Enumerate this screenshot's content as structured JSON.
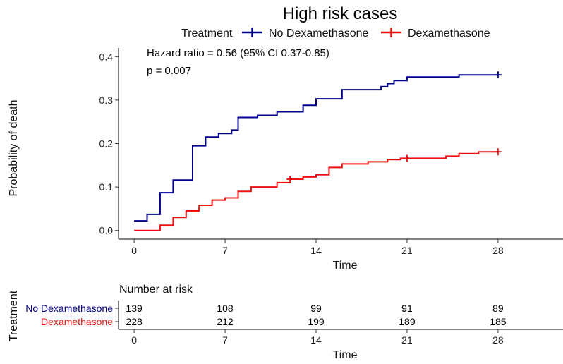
{
  "chart_data": {
    "type": "line",
    "title": "High risk cases",
    "xlabel": "Time",
    "ylabel": "Probability of death",
    "xlim": [
      -1.2,
      33
    ],
    "ylim": [
      -0.02,
      0.42
    ],
    "x_ticks": [
      0,
      7,
      14,
      21,
      28
    ],
    "y_ticks": [
      0.0,
      0.1,
      0.2,
      0.3,
      0.4
    ],
    "grid": false,
    "legend": {
      "title": "Treatment",
      "position": "top",
      "entries": [
        "No Dexamethasone",
        "Dexamethasone"
      ]
    },
    "annotations": [
      "Hazard ratio = 0.56 (95% CI 0.37-0.85)",
      "p = 0.007"
    ],
    "series": [
      {
        "name": "No Dexamethasone",
        "color": "#00008b",
        "step": true,
        "points": [
          [
            0,
            0.022
          ],
          [
            1,
            0.022
          ],
          [
            1,
            0.037
          ],
          [
            2,
            0.037
          ],
          [
            2,
            0.087
          ],
          [
            3,
            0.087
          ],
          [
            3,
            0.116
          ],
          [
            4.5,
            0.116
          ],
          [
            4.5,
            0.195
          ],
          [
            5.5,
            0.195
          ],
          [
            5.5,
            0.215
          ],
          [
            6.5,
            0.215
          ],
          [
            6.5,
            0.223
          ],
          [
            7.5,
            0.223
          ],
          [
            7.5,
            0.231
          ],
          [
            8,
            0.231
          ],
          [
            8,
            0.26
          ],
          [
            9.5,
            0.26
          ],
          [
            9.5,
            0.265
          ],
          [
            11,
            0.265
          ],
          [
            11,
            0.273
          ],
          [
            13,
            0.273
          ],
          [
            13,
            0.288
          ],
          [
            14,
            0.288
          ],
          [
            14,
            0.303
          ],
          [
            16,
            0.303
          ],
          [
            16,
            0.324
          ],
          [
            19,
            0.324
          ],
          [
            19,
            0.331
          ],
          [
            19.5,
            0.331
          ],
          [
            19.5,
            0.338
          ],
          [
            20,
            0.338
          ],
          [
            20,
            0.345
          ],
          [
            21,
            0.345
          ],
          [
            21,
            0.353
          ],
          [
            25,
            0.353
          ],
          [
            25,
            0.358
          ],
          [
            28,
            0.358
          ]
        ],
        "censor_marks": [
          [
            28,
            0.358
          ]
        ]
      },
      {
        "name": "Dexamethasone",
        "color": "#ee1111",
        "step": true,
        "points": [
          [
            0,
            0.0
          ],
          [
            2,
            0.0
          ],
          [
            2,
            0.012
          ],
          [
            3,
            0.012
          ],
          [
            3,
            0.03
          ],
          [
            4,
            0.03
          ],
          [
            4,
            0.045
          ],
          [
            5,
            0.045
          ],
          [
            5,
            0.058
          ],
          [
            6,
            0.058
          ],
          [
            6,
            0.07
          ],
          [
            7,
            0.07
          ],
          [
            7,
            0.075
          ],
          [
            8,
            0.075
          ],
          [
            8,
            0.09
          ],
          [
            9,
            0.09
          ],
          [
            9,
            0.1
          ],
          [
            11,
            0.1
          ],
          [
            11,
            0.11
          ],
          [
            12,
            0.11
          ],
          [
            12,
            0.118
          ],
          [
            13,
            0.118
          ],
          [
            13,
            0.123
          ],
          [
            14,
            0.123
          ],
          [
            14,
            0.128
          ],
          [
            15,
            0.128
          ],
          [
            15,
            0.145
          ],
          [
            16,
            0.145
          ],
          [
            16,
            0.153
          ],
          [
            18,
            0.153
          ],
          [
            18,
            0.158
          ],
          [
            19.5,
            0.158
          ],
          [
            19.5,
            0.163
          ],
          [
            20.5,
            0.163
          ],
          [
            20.5,
            0.166
          ],
          [
            24,
            0.166
          ],
          [
            24,
            0.171
          ],
          [
            25,
            0.171
          ],
          [
            25,
            0.177
          ],
          [
            26.5,
            0.177
          ],
          [
            26.5,
            0.181
          ],
          [
            28,
            0.181
          ]
        ],
        "censor_marks": [
          [
            12,
            0.118
          ],
          [
            21,
            0.166
          ],
          [
            28,
            0.181
          ]
        ]
      }
    ],
    "risk_table": {
      "title": "Number at risk",
      "y_label": "Treatment",
      "xlabel": "Time",
      "times": [
        0,
        7,
        14,
        21,
        28
      ],
      "rows": [
        {
          "name": "No Dexamethasone",
          "color": "#00008b",
          "values": [
            139,
            108,
            99,
            91,
            89
          ]
        },
        {
          "name": "Dexamethasone",
          "color": "#ee1111",
          "values": [
            228,
            212,
            199,
            189,
            185
          ]
        }
      ]
    }
  }
}
